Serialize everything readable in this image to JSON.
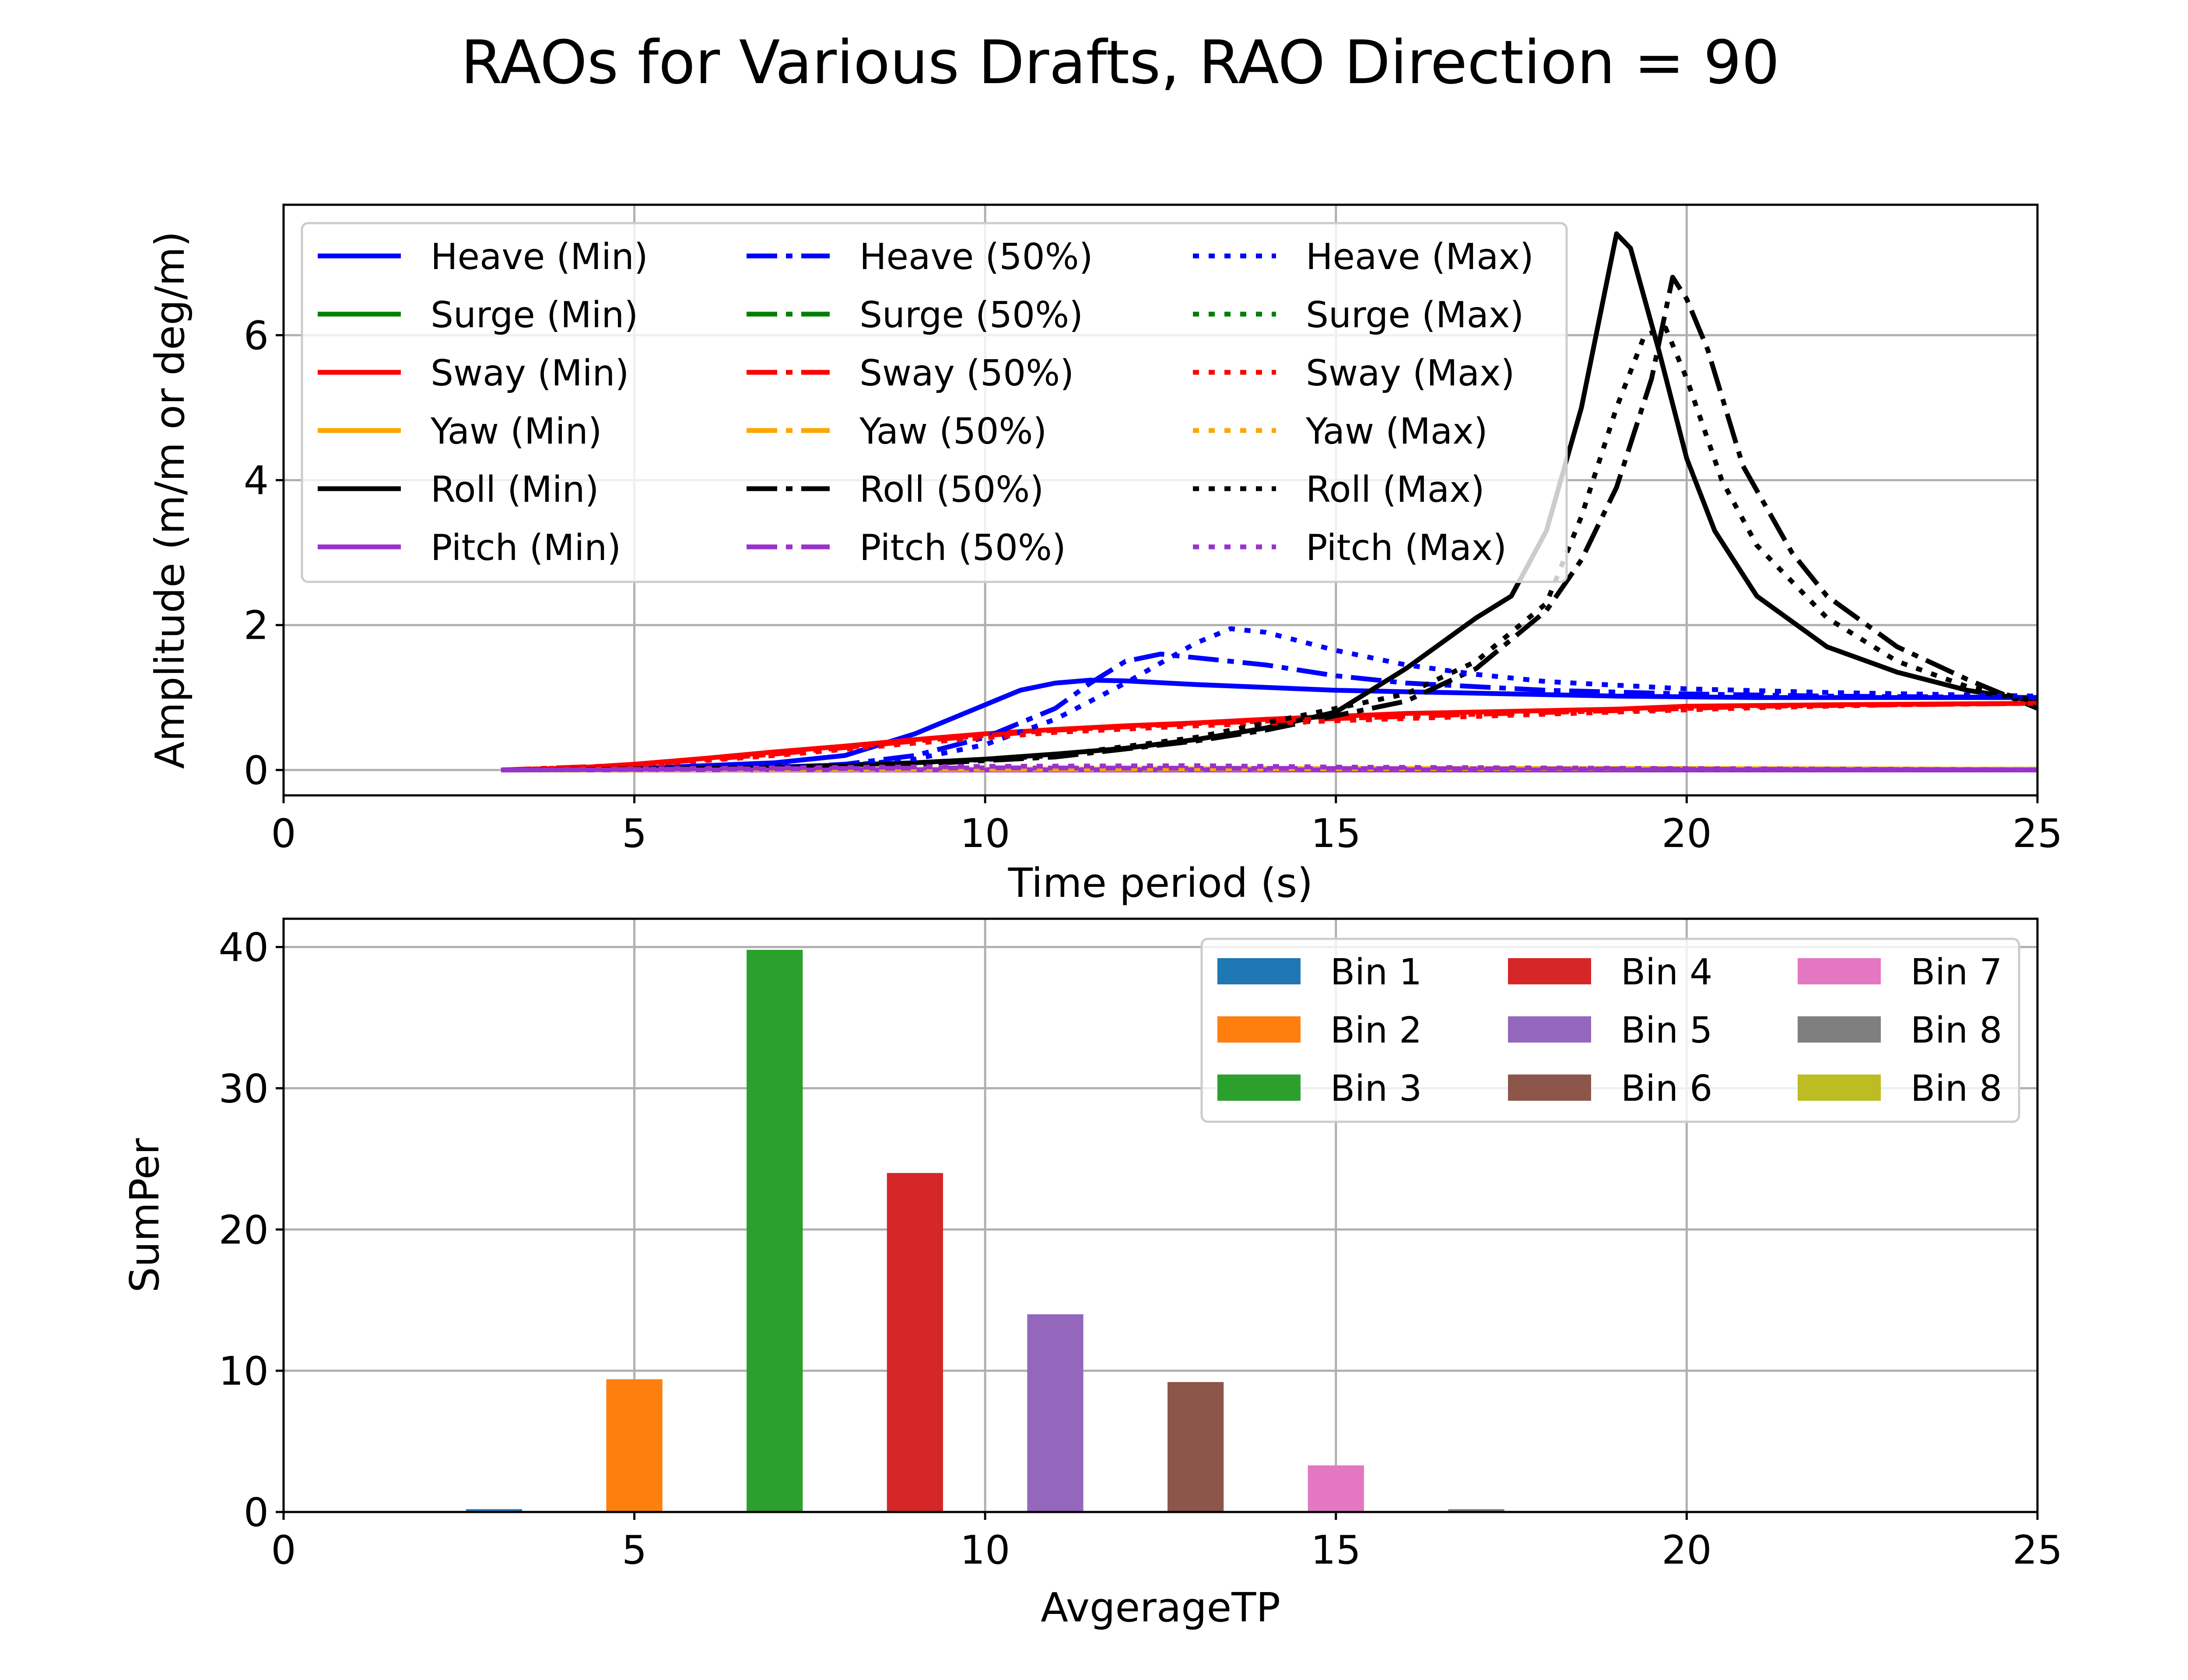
{
  "figure": {
    "title": "RAOs for Various Drafts, RAO Direction = 90"
  },
  "chart_data": [
    {
      "type": "line",
      "xlabel": "Time period (s)",
      "ylabel": "Amplitude (m/m or deg/m)",
      "xlim": [
        0,
        25
      ],
      "ylim": [
        -0.35,
        7.8
      ],
      "xticks": [
        "0",
        "5",
        "10",
        "15",
        "20",
        "25"
      ],
      "yticks": [
        "0",
        "2",
        "4",
        "6"
      ],
      "grid": true,
      "legend_location": "upper-left",
      "legend_columns": 3,
      "series": [
        {
          "name": "Heave (Min)",
          "color": "#0000ff",
          "dash": "solid",
          "points": [
            [
              3.1,
              0
            ],
            [
              5,
              0.02
            ],
            [
              7,
              0.1
            ],
            [
              8,
              0.2
            ],
            [
              9,
              0.5
            ],
            [
              10,
              0.9
            ],
            [
              10.5,
              1.1
            ],
            [
              11,
              1.2
            ],
            [
              11.5,
              1.24
            ],
            [
              12,
              1.23
            ],
            [
              13,
              1.18
            ],
            [
              15,
              1.1
            ],
            [
              17,
              1.06
            ],
            [
              19,
              1.02
            ],
            [
              21,
              1.0
            ],
            [
              23,
              1.0
            ],
            [
              25,
              1.0
            ]
          ]
        },
        {
          "name": "Surge (Min)",
          "color": "#008000",
          "dash": "solid",
          "points": [
            [
              3.1,
              0
            ],
            [
              6,
              0.01
            ],
            [
              10,
              0.01
            ],
            [
              15,
              0.01
            ],
            [
              20,
              0.01
            ],
            [
              25,
              0.01
            ]
          ]
        },
        {
          "name": "Sway (Min)",
          "color": "#ff0000",
          "dash": "solid",
          "points": [
            [
              3.1,
              0
            ],
            [
              4,
              0.02
            ],
            [
              5,
              0.08
            ],
            [
              6,
              0.16
            ],
            [
              7,
              0.25
            ],
            [
              8,
              0.33
            ],
            [
              9,
              0.42
            ],
            [
              10,
              0.5
            ],
            [
              11,
              0.56
            ],
            [
              12,
              0.61
            ],
            [
              13,
              0.65
            ],
            [
              14,
              0.7
            ],
            [
              15,
              0.74
            ],
            [
              16,
              0.78
            ],
            [
              18,
              0.82
            ],
            [
              19,
              0.84
            ],
            [
              20,
              0.88
            ],
            [
              22,
              0.9
            ],
            [
              25,
              0.92
            ]
          ]
        },
        {
          "name": "Yaw (Min)",
          "color": "#ffa500",
          "dash": "solid",
          "points": [
            [
              3.1,
              0
            ],
            [
              10,
              0.01
            ],
            [
              15,
              0.02
            ],
            [
              20,
              0.02
            ],
            [
              25,
              0.01
            ]
          ]
        },
        {
          "name": "Roll (Min)",
          "color": "#000000",
          "dash": "solid",
          "points": [
            [
              3.1,
              0
            ],
            [
              5,
              0.01
            ],
            [
              7,
              0.04
            ],
            [
              9,
              0.1
            ],
            [
              10,
              0.15
            ],
            [
              11,
              0.22
            ],
            [
              12,
              0.3
            ],
            [
              13,
              0.42
            ],
            [
              14,
              0.58
            ],
            [
              15,
              0.8
            ],
            [
              16,
              1.4
            ],
            [
              17,
              2.1
            ],
            [
              17.5,
              2.4
            ],
            [
              18,
              3.3
            ],
            [
              18.5,
              5.0
            ],
            [
              19,
              7.4
            ],
            [
              19.2,
              7.2
            ],
            [
              19.6,
              5.8
            ],
            [
              20,
              4.3
            ],
            [
              20.4,
              3.3
            ],
            [
              21,
              2.4
            ],
            [
              22,
              1.7
            ],
            [
              23,
              1.35
            ],
            [
              24,
              1.1
            ],
            [
              25,
              0.95
            ]
          ]
        },
        {
          "name": "Pitch (Min)",
          "color": "#9932cc",
          "dash": "solid",
          "points": [
            [
              3.1,
              0
            ],
            [
              10,
              0
            ],
            [
              15,
              0
            ],
            [
              20,
              0
            ],
            [
              25,
              0
            ]
          ]
        },
        {
          "name": "Heave (50%)",
          "color": "#0000ff",
          "dash": "dashdot",
          "points": [
            [
              3.1,
              0
            ],
            [
              7,
              0.03
            ],
            [
              8,
              0.08
            ],
            [
              9,
              0.2
            ],
            [
              10,
              0.45
            ],
            [
              11,
              0.85
            ],
            [
              11.5,
              1.2
            ],
            [
              12,
              1.5
            ],
            [
              12.5,
              1.6
            ],
            [
              13,
              1.55
            ],
            [
              14,
              1.45
            ],
            [
              15,
              1.3
            ],
            [
              16,
              1.2
            ],
            [
              18,
              1.1
            ],
            [
              20,
              1.05
            ],
            [
              22,
              1.02
            ],
            [
              25,
              1.0
            ]
          ]
        },
        {
          "name": "Surge (50%)",
          "color": "#008000",
          "dash": "dashdot",
          "points": [
            [
              3.1,
              0
            ],
            [
              10,
              0.01
            ],
            [
              20,
              0.01
            ],
            [
              25,
              0.01
            ]
          ]
        },
        {
          "name": "Sway (50%)",
          "color": "#ff0000",
          "dash": "dashdot",
          "points": [
            [
              3.1,
              0
            ],
            [
              5,
              0.07
            ],
            [
              7,
              0.22
            ],
            [
              9,
              0.4
            ],
            [
              11,
              0.55
            ],
            [
              13,
              0.64
            ],
            [
              15,
              0.71
            ],
            [
              17,
              0.77
            ],
            [
              19,
              0.82
            ],
            [
              21,
              0.88
            ],
            [
              23,
              0.9
            ],
            [
              25,
              0.92
            ]
          ]
        },
        {
          "name": "Yaw (50%)",
          "color": "#ffa500",
          "dash": "dashdot",
          "points": [
            [
              3.1,
              0
            ],
            [
              10,
              0.01
            ],
            [
              20,
              0.02
            ],
            [
              25,
              0.01
            ]
          ]
        },
        {
          "name": "Roll (50%)",
          "color": "#000000",
          "dash": "dashdot",
          "points": [
            [
              3.1,
              0
            ],
            [
              7,
              0.03
            ],
            [
              9,
              0.08
            ],
            [
              11,
              0.18
            ],
            [
              13,
              0.4
            ],
            [
              14,
              0.55
            ],
            [
              15,
              0.75
            ],
            [
              16,
              0.95
            ],
            [
              17,
              1.4
            ],
            [
              18,
              2.2
            ],
            [
              18.5,
              2.9
            ],
            [
              19,
              3.9
            ],
            [
              19.5,
              5.4
            ],
            [
              19.8,
              6.8
            ],
            [
              20,
              6.5
            ],
            [
              20.3,
              5.8
            ],
            [
              20.8,
              4.2
            ],
            [
              21.5,
              3.0
            ],
            [
              22,
              2.4
            ],
            [
              23,
              1.7
            ],
            [
              24,
              1.25
            ],
            [
              25,
              0.85
            ]
          ]
        },
        {
          "name": "Pitch (50%)",
          "color": "#9932cc",
          "dash": "dashdot",
          "points": [
            [
              3.1,
              0
            ],
            [
              10,
              0.03
            ],
            [
              15,
              0.02
            ],
            [
              20,
              0.01
            ],
            [
              25,
              0
            ]
          ]
        },
        {
          "name": "Heave (Max)",
          "color": "#0000ff",
          "dash": "dotted",
          "points": [
            [
              3.1,
              0
            ],
            [
              8,
              0.06
            ],
            [
              9,
              0.15
            ],
            [
              10,
              0.35
            ],
            [
              11,
              0.7
            ],
            [
              12,
              1.2
            ],
            [
              13,
              1.75
            ],
            [
              13.5,
              1.95
            ],
            [
              14,
              1.9
            ],
            [
              15,
              1.65
            ],
            [
              16,
              1.45
            ],
            [
              17,
              1.32
            ],
            [
              18,
              1.22
            ],
            [
              20,
              1.12
            ],
            [
              22,
              1.07
            ],
            [
              25,
              1.02
            ]
          ]
        },
        {
          "name": "Surge (Max)",
          "color": "#008000",
          "dash": "dotted",
          "points": [
            [
              3.1,
              0
            ],
            [
              10,
              0.01
            ],
            [
              20,
              0.01
            ],
            [
              25,
              0.01
            ]
          ]
        },
        {
          "name": "Sway (Max)",
          "color": "#ff0000",
          "dash": "dotted",
          "points": [
            [
              3.1,
              0
            ],
            [
              5,
              0.06
            ],
            [
              7,
              0.2
            ],
            [
              9,
              0.37
            ],
            [
              11,
              0.52
            ],
            [
              13,
              0.61
            ],
            [
              15,
              0.68
            ],
            [
              17,
              0.74
            ],
            [
              19,
              0.8
            ],
            [
              21,
              0.86
            ],
            [
              23,
              0.9
            ],
            [
              25,
              0.92
            ]
          ]
        },
        {
          "name": "Yaw (Max)",
          "color": "#ffa500",
          "dash": "dotted",
          "points": [
            [
              3.1,
              0
            ],
            [
              10,
              0.01
            ],
            [
              20,
              0.02
            ],
            [
              25,
              0.01
            ]
          ]
        },
        {
          "name": "Roll (Max)",
          "color": "#000000",
          "dash": "dotted",
          "points": [
            [
              3.1,
              0
            ],
            [
              7,
              0.03
            ],
            [
              9,
              0.09
            ],
            [
              11,
              0.2
            ],
            [
              13,
              0.45
            ],
            [
              15,
              0.85
            ],
            [
              16,
              1.05
            ],
            [
              17,
              1.5
            ],
            [
              18,
              2.3
            ],
            [
              18.5,
              3.5
            ],
            [
              19,
              5.0
            ],
            [
              19.4,
              6.0
            ],
            [
              19.7,
              6.1
            ],
            [
              20,
              5.4
            ],
            [
              20.5,
              4.0
            ],
            [
              21,
              3.1
            ],
            [
              22,
              2.1
            ],
            [
              23,
              1.5
            ],
            [
              24,
              1.15
            ],
            [
              25,
              0.95
            ]
          ]
        },
        {
          "name": "Pitch (Max)",
          "color": "#9932cc",
          "dash": "dotted",
          "points": [
            [
              3.1,
              0
            ],
            [
              10,
              0.05
            ],
            [
              13,
              0.06
            ],
            [
              15,
              0.04
            ],
            [
              20,
              0.02
            ],
            [
              25,
              0
            ]
          ]
        }
      ]
    },
    {
      "type": "bar",
      "xlabel": "AvgerageTP",
      "ylabel": "SumPer",
      "xlim": [
        0,
        25
      ],
      "ylim": [
        0,
        42
      ],
      "xticks": [
        "0",
        "5",
        "10",
        "15",
        "20",
        "25"
      ],
      "yticks": [
        "0",
        "10",
        "20",
        "30",
        "40"
      ],
      "grid": true,
      "legend_location": "upper-right",
      "legend_columns": 3,
      "bar_width": 0.8,
      "series": [
        {
          "name": "Bin 1",
          "color": "#1f77b4",
          "x": 3,
          "value": 0.2
        },
        {
          "name": "Bin 2",
          "color": "#ff7f0e",
          "x": 5,
          "value": 9.4
        },
        {
          "name": "Bin 3",
          "color": "#2ca02c",
          "x": 7,
          "value": 39.8
        },
        {
          "name": "Bin 4",
          "color": "#d62728",
          "x": 9,
          "value": 24.0
        },
        {
          "name": "Bin 5",
          "color": "#9467bd",
          "x": 11,
          "value": 14.0
        },
        {
          "name": "Bin 6",
          "color": "#8c564b",
          "x": 13,
          "value": 9.2
        },
        {
          "name": "Bin 7",
          "color": "#e377c2",
          "x": 15,
          "value": 3.3
        },
        {
          "name": "Bin 8",
          "color": "#7f7f7f",
          "x": 17,
          "value": 0.2
        },
        {
          "name": "Bin 8",
          "color": "#bcbd22",
          "x": 19,
          "value": 0.0
        }
      ]
    }
  ]
}
